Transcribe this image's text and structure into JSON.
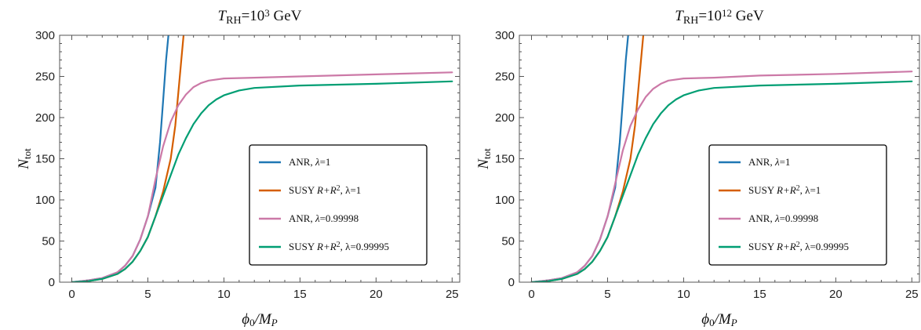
{
  "chart_data": [
    {
      "type": "line",
      "title_symbol": "T",
      "title_sub": "RH",
      "title_base": "=10",
      "title_exp": "3",
      "title_unit": " GeV",
      "xlabel_main": "ϕ",
      "xlabel_sub": "0",
      "xlabel_rest": "/M",
      "xlabel_rest_sub": "P",
      "ylabel_main": "N",
      "ylabel_sub": "tot",
      "xlim": [
        -0.8,
        25.5
      ],
      "ylim": [
        0,
        300
      ],
      "xticks": [
        "0",
        "5",
        "10",
        "15",
        "20",
        "25"
      ],
      "yticks": [
        "0",
        "50",
        "100",
        "150",
        "200",
        "250",
        "300"
      ],
      "grid": false,
      "legend_position": "center-right",
      "series": [
        {
          "label_plain": "ANR, ",
          "label_italic": "λ",
          "label_after": "=1",
          "color": "#1f77b4",
          "x": [
            0,
            1,
            2,
            3,
            3.5,
            4,
            4.5,
            5,
            5.5,
            5.8,
            6.0,
            6.2,
            6.35
          ],
          "y": [
            0,
            2,
            5,
            12,
            20,
            32,
            52,
            80,
            115,
            170,
            220,
            270,
            300
          ]
        },
        {
          "label_plain": "SUSY ",
          "label_italic": "R+R",
          "label_sup": "2",
          "label_after": ", λ=1",
          "color": "#d55e00",
          "x": [
            0,
            1,
            2,
            3,
            3.5,
            4,
            4.5,
            5,
            5.5,
            6,
            6.5,
            6.8,
            7.0,
            7.2,
            7.35
          ],
          "y": [
            0,
            1,
            4,
            10,
            16,
            25,
            38,
            55,
            80,
            110,
            150,
            190,
            230,
            270,
            300
          ]
        },
        {
          "label_plain": "ANR, ",
          "label_italic": "λ",
          "label_after": "=0.99998",
          "color": "#cc79a7",
          "x": [
            0,
            1,
            2,
            3,
            3.5,
            4,
            4.5,
            5,
            5.5,
            6,
            6.5,
            7,
            7.5,
            8,
            8.5,
            9,
            10,
            12,
            15,
            20,
            25
          ],
          "y": [
            0,
            2,
            5,
            12,
            20,
            32,
            52,
            80,
            125,
            165,
            195,
            215,
            228,
            237,
            242,
            245,
            247.5,
            248.5,
            250,
            252.5,
            255
          ]
        },
        {
          "label_plain": "SUSY ",
          "label_italic": "R+R",
          "label_sup": "2",
          "label_after": ", λ=0.99995",
          "color": "#009e73",
          "x": [
            0,
            1,
            2,
            3,
            3.5,
            4,
            4.5,
            5,
            5.5,
            6,
            6.5,
            7,
            7.5,
            8,
            8.5,
            9,
            9.5,
            10,
            11,
            12,
            15,
            20,
            25
          ],
          "y": [
            0,
            1,
            4,
            10,
            16,
            25,
            38,
            55,
            80,
            105,
            130,
            155,
            175,
            192,
            205,
            215,
            222,
            227,
            233,
            236,
            239,
            241,
            244
          ]
        }
      ]
    },
    {
      "type": "line",
      "title_symbol": "T",
      "title_sub": "RH",
      "title_base": "=10",
      "title_exp": "12",
      "title_unit": " GeV",
      "xlabel_main": "ϕ",
      "xlabel_sub": "0",
      "xlabel_rest": "/M",
      "xlabel_rest_sub": "P",
      "ylabel_main": "N",
      "ylabel_sub": "tot",
      "xlim": [
        -0.8,
        25.5
      ],
      "ylim": [
        0,
        300
      ],
      "xticks": [
        "0",
        "5",
        "10",
        "15",
        "20",
        "25"
      ],
      "yticks": [
        "0",
        "50",
        "100",
        "150",
        "200",
        "250",
        "300"
      ],
      "grid": false,
      "legend_position": "center-right",
      "series": [
        {
          "label_plain": "ANR, ",
          "label_italic": "λ",
          "label_after": "=1",
          "color": "#1f77b4",
          "x": [
            0,
            1,
            2,
            3,
            3.5,
            4,
            4.5,
            5,
            5.5,
            5.8,
            6.0,
            6.2,
            6.35
          ],
          "y": [
            0,
            2,
            5,
            12,
            20,
            32,
            52,
            80,
            115,
            170,
            220,
            270,
            300
          ]
        },
        {
          "label_plain": "SUSY ",
          "label_italic": "R+R",
          "label_sup": "2",
          "label_after": ", λ=1",
          "color": "#d55e00",
          "x": [
            0,
            1,
            2,
            3,
            3.5,
            4,
            4.5,
            5,
            5.5,
            6,
            6.5,
            6.8,
            7.0,
            7.2,
            7.35
          ],
          "y": [
            0,
            1,
            4,
            10,
            16,
            25,
            38,
            55,
            80,
            110,
            150,
            190,
            230,
            270,
            300
          ]
        },
        {
          "label_plain": "ANR, ",
          "label_italic": "λ",
          "label_after": "=0.99998",
          "color": "#cc79a7",
          "x": [
            0,
            1,
            2,
            3,
            3.5,
            4,
            4.5,
            5,
            5.5,
            6,
            6.5,
            7,
            7.5,
            8,
            8.5,
            9,
            10,
            12,
            15,
            20,
            25
          ],
          "y": [
            0,
            2,
            5,
            12,
            20,
            32,
            52,
            80,
            120,
            160,
            190,
            210,
            225,
            235,
            241,
            245,
            247.5,
            248.5,
            251,
            253,
            256
          ]
        },
        {
          "label_plain": "SUSY ",
          "label_italic": "R+R",
          "label_sup": "2",
          "label_after": ", λ=0.99995",
          "color": "#009e73",
          "x": [
            0,
            1,
            2,
            3,
            3.5,
            4,
            4.5,
            5,
            5.5,
            6,
            6.5,
            7,
            7.5,
            8,
            8.5,
            9,
            9.5,
            10,
            11,
            12,
            15,
            20,
            25
          ],
          "y": [
            0,
            1,
            4,
            10,
            16,
            25,
            38,
            55,
            80,
            105,
            130,
            155,
            175,
            192,
            205,
            215,
            222,
            227,
            233,
            236,
            239,
            241,
            244
          ]
        }
      ]
    }
  ]
}
